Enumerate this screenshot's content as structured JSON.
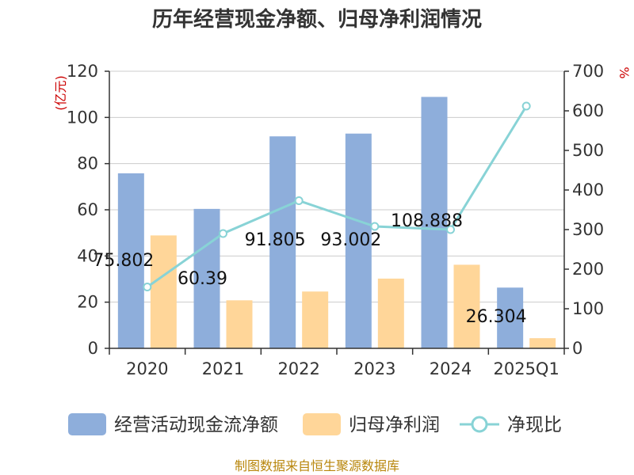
{
  "chart_data": {
    "type": "bar",
    "title": "历年经营现金净额、归母净利润情况",
    "categories": [
      "2020",
      "2021",
      "2022",
      "2023",
      "2024",
      "2025Q1"
    ],
    "series": [
      {
        "name": "经营活动现金流净额",
        "type": "bar",
        "axis": "left",
        "color": "#8eaedb",
        "values": [
          75.802,
          60.39,
          91.805,
          93.002,
          108.888,
          26.304
        ],
        "labels": [
          "75.802",
          "60.39",
          "91.805",
          "93.002",
          "108.888",
          "26.304"
        ]
      },
      {
        "name": "归母净利润",
        "type": "bar",
        "axis": "left",
        "color": "#ffd699",
        "values": [
          48.9,
          20.8,
          24.6,
          30.2,
          36.2,
          4.4
        ]
      },
      {
        "name": "净现比",
        "type": "line",
        "axis": "right",
        "color": "#88d3d6",
        "values": [
          155,
          290,
          373,
          308,
          300,
          612
        ]
      }
    ],
    "left_axis": {
      "unit": "(亿元)",
      "min": 0,
      "max": 120,
      "ticks": [
        0,
        20,
        40,
        60,
        80,
        100,
        120
      ]
    },
    "right_axis": {
      "unit": "%",
      "min": 0,
      "max": 700,
      "ticks": [
        0,
        100,
        200,
        300,
        400,
        500,
        600,
        700
      ]
    },
    "grid": true,
    "legend": "bottom",
    "source": "制图数据来自恒生聚源数据库"
  }
}
